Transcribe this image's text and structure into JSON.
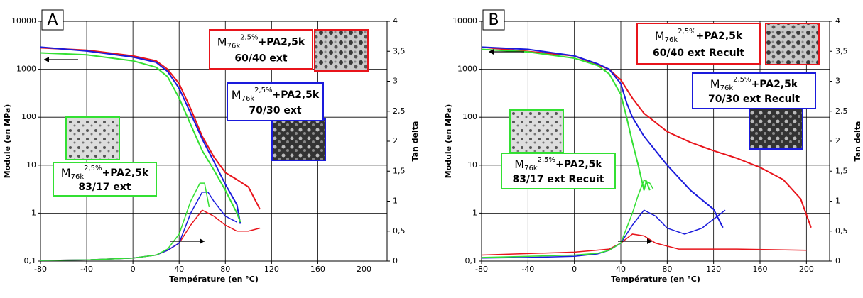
{
  "chart_data": [
    {
      "type": "line",
      "label": "A",
      "x_label": "Température (en °C)",
      "y_label": "Module (en MPa)",
      "y2_label": "Tan delta",
      "xlim": [
        -80,
        220
      ],
      "xticks": [
        -80,
        -40,
        0,
        40,
        80,
        120,
        160,
        200
      ],
      "ylim": [
        0.1,
        10000
      ],
      "log_y": true,
      "yticks": [
        {
          "value": 0.1,
          "label": "0,1"
        },
        1,
        10,
        100,
        1000,
        10000
      ],
      "y2lim": [
        0,
        4
      ],
      "y2ticks": [
        0,
        {
          "value": 0.5,
          "label": "0,5"
        },
        1,
        {
          "value": 1.5,
          "label": "1,5"
        },
        2,
        {
          "value": 2.5,
          "label": "2,5"
        },
        3,
        {
          "value": 3.5,
          "label": "3,5"
        },
        4
      ],
      "grid": true,
      "labels": [
        {
          "main": "M",
          "sub": "76k",
          "sup": "2,5%",
          "rest": "+PA2,5k",
          "line2": "60/40 ext",
          "color": "#e8141b"
        },
        {
          "main": "M",
          "sub": "76k",
          "sup": "2,5%",
          "rest": "+PA2,5k",
          "line2": "70/30 ext",
          "color": "#1a1adc"
        },
        {
          "main": "M",
          "sub": "76k",
          "sup": "2,5%",
          "rest": "+PA2,5k",
          "line2": "83/17 ext",
          "color": "#33e033"
        }
      ],
      "series": [
        {
          "color": "#e8141b",
          "axis": "y",
          "x": [
            -80,
            -40,
            0,
            20,
            30,
            40,
            50,
            60,
            70,
            80,
            90,
            100,
            110
          ],
          "values": [
            2800,
            2500,
            1900,
            1500,
            1000,
            500,
            150,
            40,
            15,
            7,
            5,
            3.5,
            1.2
          ]
        },
        {
          "color": "#1a1adc",
          "axis": "y",
          "x": [
            -80,
            -40,
            0,
            20,
            30,
            40,
            50,
            60,
            70,
            80,
            90,
            93
          ],
          "values": [
            2900,
            2400,
            1800,
            1400,
            900,
            400,
            120,
            35,
            12,
            4,
            1.5,
            0.6
          ]
        },
        {
          "color": "#33e033",
          "axis": "y",
          "x": [
            -80,
            -40,
            0,
            20,
            30,
            40,
            50,
            60,
            70,
            80,
            90,
            93
          ],
          "values": [
            2200,
            2000,
            1500,
            1100,
            700,
            250,
            70,
            20,
            8,
            3,
            1,
            0.65
          ]
        },
        {
          "color": "#e8141b",
          "axis": "y2",
          "x": [
            -80,
            -40,
            0,
            20,
            30,
            40,
            50,
            60,
            70,
            80,
            90,
            100,
            110
          ],
          "values": [
            0.01,
            0.02,
            0.05,
            0.1,
            0.18,
            0.3,
            0.6,
            0.85,
            0.75,
            0.6,
            0.5,
            0.5,
            0.55
          ]
        },
        {
          "color": "#1a1adc",
          "axis": "y2",
          "x": [
            -80,
            -40,
            0,
            20,
            30,
            40,
            50,
            60,
            65,
            70,
            80,
            90
          ],
          "values": [
            0.01,
            0.02,
            0.05,
            0.1,
            0.18,
            0.3,
            0.8,
            1.15,
            1.15,
            1.0,
            0.75,
            0.65
          ]
        },
        {
          "color": "#33e033",
          "axis": "y2",
          "x": [
            -80,
            -40,
            0,
            20,
            30,
            40,
            50,
            58,
            62,
            66
          ],
          "values": [
            0.01,
            0.02,
            0.05,
            0.1,
            0.2,
            0.45,
            1.0,
            1.3,
            1.3,
            0.9
          ]
        }
      ]
    },
    {
      "type": "line",
      "label": "B",
      "x_label": "Température (en °C)",
      "y_label": "Module (en MPa)",
      "y2_label": "Tan delta",
      "xlim": [
        -80,
        220
      ],
      "xticks": [
        -80,
        -40,
        0,
        40,
        80,
        120,
        160,
        200
      ],
      "ylim": [
        0.1,
        10000
      ],
      "log_y": true,
      "yticks": [
        {
          "value": 0.1,
          "label": "0,1"
        },
        1,
        10,
        100,
        1000,
        10000
      ],
      "y2lim": [
        0,
        4
      ],
      "y2ticks": [
        0,
        {
          "value": 0.5,
          "label": "0,5"
        },
        1,
        {
          "value": 1.5,
          "label": "1,5"
        },
        2,
        {
          "value": 2.5,
          "label": "2,5"
        },
        3,
        {
          "value": 3.5,
          "label": "3,5"
        },
        4
      ],
      "grid": true,
      "labels": [
        {
          "main": "M",
          "sub": "76k",
          "sup": "2,5%",
          "rest": "+PA2,5k",
          "line2": "60/40 ext Recuit",
          "color": "#e8141b"
        },
        {
          "main": "M",
          "sub": "76k",
          "sup": "2,5%",
          "rest": "+PA2,5k",
          "line2": "70/30 ext Recuit",
          "color": "#1a1adc"
        },
        {
          "main": "M",
          "sub": "76k",
          "sup": "2,5%",
          "rest": "+PA2,5k",
          "line2": "83/17 ext Recuit",
          "color": "#33e033"
        }
      ],
      "series": [
        {
          "color": "#e8141b",
          "axis": "y",
          "x": [
            -80,
            0,
            30,
            40,
            50,
            60,
            80,
            100,
            120,
            140,
            160,
            180,
            195,
            204
          ],
          "values": [
            2900,
            1900,
            1000,
            600,
            250,
            120,
            50,
            30,
            20,
            14,
            9,
            5,
            2,
            0.5
          ]
        },
        {
          "color": "#1a1adc",
          "axis": "y",
          "x": [
            -80,
            -40,
            0,
            20,
            30,
            40,
            45,
            50,
            60,
            70,
            80,
            100,
            120,
            128
          ],
          "values": [
            2900,
            2600,
            1900,
            1300,
            1000,
            500,
            200,
            100,
            40,
            20,
            10,
            3,
            1.2,
            0.5
          ]
        },
        {
          "color": "#33e033",
          "axis": "y",
          "x": [
            -80,
            -40,
            0,
            20,
            30,
            40,
            45,
            50,
            55,
            60,
            62,
            65
          ],
          "values": [
            2600,
            2300,
            1700,
            1200,
            800,
            300,
            100,
            30,
            10,
            3,
            4.6,
            3
          ]
        },
        {
          "color": "#e8141b",
          "axis": "y2",
          "x": [
            -80,
            0,
            30,
            40,
            50,
            60,
            70,
            90,
            140,
            200
          ],
          "values": [
            0.1,
            0.15,
            0.2,
            0.3,
            0.45,
            0.42,
            0.3,
            0.2,
            0.2,
            0.18
          ]
        },
        {
          "color": "#1a1adc",
          "axis": "y2",
          "x": [
            -80,
            -40,
            0,
            20,
            30,
            40,
            50,
            60,
            70,
            80,
            95,
            110,
            120,
            130
          ],
          "values": [
            0.05,
            0.06,
            0.08,
            0.12,
            0.18,
            0.3,
            0.6,
            0.85,
            0.75,
            0.55,
            0.45,
            0.55,
            0.7,
            0.85
          ]
        },
        {
          "color": "#33e033",
          "axis": "y2",
          "x": [
            -80,
            -40,
            0,
            20,
            30,
            40,
            50,
            55,
            60,
            65,
            68
          ],
          "values": [
            0.06,
            0.08,
            0.1,
            0.13,
            0.18,
            0.3,
            0.8,
            1.1,
            1.35,
            1.3,
            1.2
          ]
        }
      ]
    }
  ]
}
